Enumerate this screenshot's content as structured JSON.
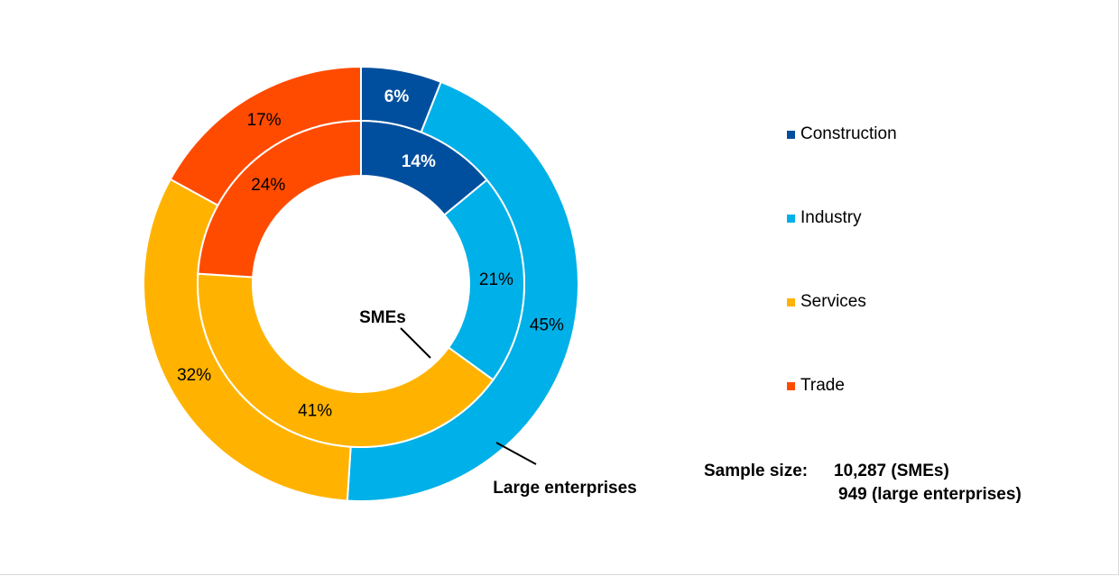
{
  "chart_data": {
    "type": "pie",
    "subtype": "nested-donut",
    "categories": [
      "Construction",
      "Industry",
      "Services",
      "Trade"
    ],
    "colors": [
      "#004f9e",
      "#00b0e8",
      "#ffb300",
      "#ff4b00"
    ],
    "series": [
      {
        "name": "SMEs",
        "ring": "inner",
        "values": [
          14,
          21,
          41,
          24
        ],
        "labels": [
          "14%",
          "21%",
          "41%",
          "24%"
        ]
      },
      {
        "name": "Large enterprises",
        "ring": "outer",
        "values": [
          6,
          45,
          32,
          17
        ],
        "labels": [
          "6%",
          "45%",
          "32%",
          "17%"
        ]
      }
    ],
    "legend": {
      "position": "right"
    }
  },
  "annotations": {
    "inner_ring_label": "SMEs",
    "outer_ring_label": "Large enterprises"
  },
  "sample_size": {
    "label": "Sample size:",
    "smes": "10,287 (SMEs)",
    "large": "949 (large enterprises)"
  }
}
